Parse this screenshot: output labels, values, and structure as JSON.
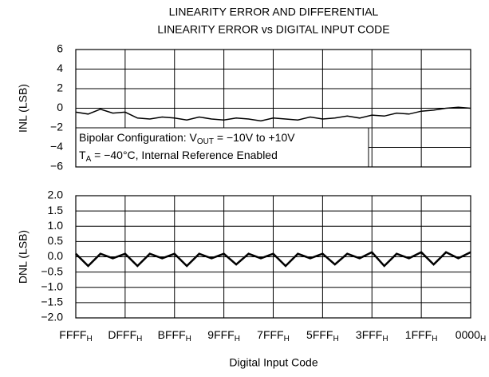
{
  "title": [
    "LINEARITY ERROR AND DIFFERENTIAL",
    "LINEARITY ERROR vs DIGITAL INPUT CODE"
  ],
  "x_label": "Digital Input Code",
  "xtick_subscript": "H",
  "chart_data": [
    {
      "type": "line",
      "y_label": "INL (LSB)",
      "xlim": [
        65535,
        0
      ],
      "xticks": [
        65535,
        57343,
        49151,
        40959,
        32767,
        24575,
        16383,
        8191,
        0
      ],
      "ylim": [
        -6,
        6
      ],
      "yticks": [
        {
          "value": -6,
          "label": "−6"
        },
        {
          "value": -4,
          "label": "−4"
        },
        {
          "value": -2,
          "label": "−2"
        },
        0,
        2,
        4,
        6
      ],
      "grid": true,
      "annotations": [
        [
          {
            "text": "Bipolar Configuration: V"
          },
          {
            "text": "OUT",
            "sub": true
          },
          {
            "text": " = −10V to +10V"
          }
        ],
        [
          {
            "text": "T"
          },
          {
            "text": "A",
            "sub": true
          },
          {
            "text": " = −40°C, Internal Reference Enabled"
          }
        ]
      ],
      "x": [
        65535,
        63488,
        61440,
        59392,
        57344,
        55296,
        53248,
        51200,
        49152,
        47104,
        45056,
        43008,
        40960,
        38912,
        36864,
        34816,
        32768,
        30720,
        28672,
        26624,
        24576,
        22528,
        20480,
        18432,
        16384,
        14336,
        12288,
        10240,
        8192,
        6144,
        4096,
        2048,
        0
      ],
      "series": [
        {
          "name": "INL",
          "color": "#000000",
          "values": [
            -0.4,
            -0.6,
            -0.1,
            -0.5,
            -0.4,
            -1.0,
            -1.1,
            -0.9,
            -1.0,
            -1.2,
            -0.9,
            -1.1,
            -1.2,
            -1.0,
            -1.1,
            -1.3,
            -1.0,
            -1.1,
            -1.2,
            -0.9,
            -1.1,
            -1.0,
            -0.8,
            -1.0,
            -0.7,
            -0.8,
            -0.5,
            -0.6,
            -0.3,
            -0.2,
            0.0,
            0.1,
            0.0
          ]
        }
      ]
    },
    {
      "type": "line",
      "y_label": "DNL (LSB)",
      "xlim": [
        65535,
        0
      ],
      "xticks": [
        {
          "value": 65535,
          "label": "FFFF"
        },
        {
          "value": 57343,
          "label": "DFFF"
        },
        {
          "value": 49151,
          "label": "BFFF"
        },
        {
          "value": 40959,
          "label": "9FFF"
        },
        {
          "value": 32767,
          "label": "7FFF"
        },
        {
          "value": 24575,
          "label": "5FFF"
        },
        {
          "value": 16383,
          "label": "3FFF"
        },
        {
          "value": 8191,
          "label": "1FFF"
        },
        {
          "value": 0,
          "label": "0000"
        }
      ],
      "ylim": [
        -2,
        2
      ],
      "yticks": [
        {
          "value": -2,
          "label": "−2.0"
        },
        {
          "value": -1.5,
          "label": "−1.5"
        },
        {
          "value": -1,
          "label": "−1.0"
        },
        {
          "value": -0.5,
          "label": "−0.5"
        },
        {
          "value": 0,
          "label": "0.0"
        },
        {
          "value": 0.5,
          "label": "0.5"
        },
        {
          "value": 1,
          "label": "1.0"
        },
        {
          "value": 1.5,
          "label": "1.5"
        },
        {
          "value": 2,
          "label": "2.0"
        }
      ],
      "grid": true,
      "x": [
        65535,
        63488,
        61440,
        59392,
        57344,
        55296,
        53248,
        51200,
        49152,
        47104,
        45056,
        43008,
        40960,
        38912,
        36864,
        34816,
        32768,
        30720,
        28672,
        26624,
        24576,
        22528,
        20480,
        18432,
        16384,
        14336,
        12288,
        10240,
        8192,
        6144,
        4096,
        2048,
        0
      ],
      "series": [
        {
          "name": "DNL",
          "color": "#000000",
          "values": [
            0.1,
            -0.3,
            0.1,
            -0.05,
            0.1,
            -0.3,
            0.1,
            -0.05,
            0.1,
            -0.3,
            0.1,
            -0.05,
            0.1,
            -0.25,
            0.1,
            -0.05,
            0.1,
            -0.3,
            0.1,
            -0.05,
            0.1,
            -0.25,
            0.1,
            -0.05,
            0.15,
            -0.3,
            0.1,
            -0.05,
            0.15,
            -0.25,
            0.15,
            -0.05,
            0.15
          ]
        }
      ]
    }
  ]
}
